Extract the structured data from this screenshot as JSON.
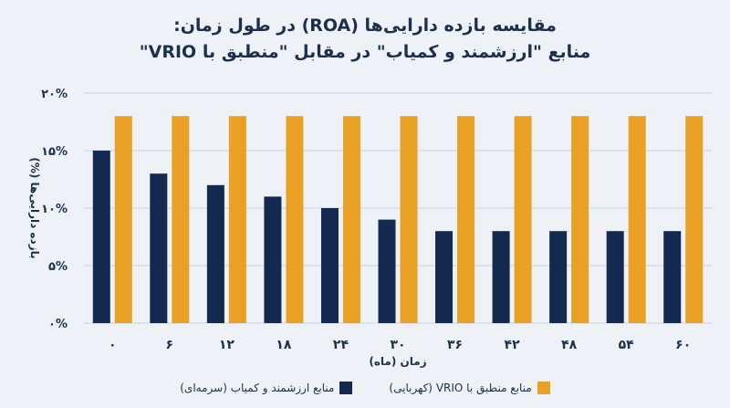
{
  "title_line1": "مقایسه بازده دارایی‌ها (ROA) در طول زمان:",
  "title_line2": "منابع \"ارزشمند و کمیاب\" در مقابل \"منطبق با VRIO\"",
  "colors": {
    "navy": "#13294f",
    "gold": "#e8a124",
    "grid": "#c9d1dc",
    "text": "#1c2f4d"
  },
  "chart_data": {
    "type": "bar",
    "categories": [
      "۰",
      "۶",
      "۱۲",
      "۱۸",
      "۲۴",
      "۳۰",
      "۳۶",
      "۴۲",
      "۴۸",
      "۵۴",
      "۶۰"
    ],
    "series": [
      {
        "name": "منابع ارزشمند و کمیاب (سرمه‌ای)",
        "color": "#13294f",
        "values": [
          15,
          13,
          12,
          11,
          10,
          9,
          8,
          8,
          8,
          8,
          8
        ]
      },
      {
        "name": "منابع منطبق با VRIO (کهربایی)",
        "color": "#e8a124",
        "values": [
          18,
          18,
          18,
          18,
          18,
          18,
          18,
          18,
          18,
          18,
          18
        ]
      }
    ],
    "ylim": [
      0,
      20
    ],
    "yticks": [
      0,
      5,
      10,
      15,
      20
    ],
    "ytick_labels": [
      "۰%",
      "۵%",
      "۱۰%",
      "۱۵%",
      "۲۰%"
    ],
    "xlabel": "زمان (ماه)",
    "ylabel": "بازده دارایی‌ها (%)",
    "grid": true,
    "legend_position": "bottom"
  }
}
